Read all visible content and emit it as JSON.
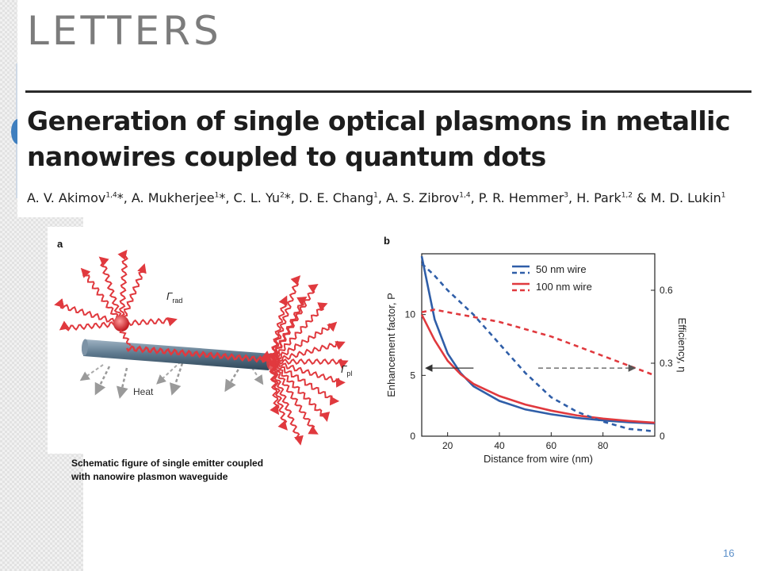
{
  "journal_name": "LETTERS",
  "title": {
    "line1": "Generation of single optical plasmons in metallic",
    "line2": "nanowires coupled to quantum dots"
  },
  "authors": [
    {
      "name": "A. V. Akimov",
      "sup": "1,4",
      "mark": "*"
    },
    {
      "name": "A. Mukherjee",
      "sup": "1",
      "mark": "*"
    },
    {
      "name": "C. L. Yu",
      "sup": "2",
      "mark": "*"
    },
    {
      "name": "D. E. Chang",
      "sup": "1",
      "mark": ""
    },
    {
      "name": "A. S. Zibrov",
      "sup": "1,4",
      "mark": ""
    },
    {
      "name": "P. R. Hemmer",
      "sup": "3",
      "mark": ""
    },
    {
      "name": "H. Park",
      "sup": "1,2",
      "mark": ""
    },
    {
      "name": "M. D. Lukin",
      "sup": "1",
      "mark": ""
    }
  ],
  "figure_a": {
    "panel_label": "a",
    "gamma_rad": "Γ",
    "gamma_rad_sub": "rad",
    "gamma_pl": "Γ",
    "gamma_pl_sub": "pl",
    "heat_label": "Heat"
  },
  "caption": {
    "line1": "Schematic figure of single emitter coupled",
    "line2": "with nanowire plasmon waveguide"
  },
  "page_number": "16",
  "colors": {
    "blue": "#2f5ea8",
    "red": "#e0393e",
    "accent": "#5b8fc9"
  },
  "chart_data": {
    "type": "line",
    "panel_label": "b",
    "xlabel": "Distance from wire (nm)",
    "ylabel_left": "Enhancement factor, P",
    "ylabel_right": "Efficiency, η",
    "xlim": [
      10,
      100
    ],
    "ylim_left": [
      0,
      15
    ],
    "ylim_right": [
      0,
      0.75
    ],
    "xticks": [
      20,
      40,
      60,
      80
    ],
    "yticks_left": [
      0,
      5,
      10
    ],
    "yticks_right": [
      0,
      0.3,
      0.6
    ],
    "legend": [
      {
        "label": "50 nm wire",
        "color": "#2f5ea8"
      },
      {
        "label": "100 nm wire",
        "color": "#e0393e"
      }
    ],
    "legend_position": "top-right",
    "grid": false,
    "series": [
      {
        "name": "50 nm wire",
        "axis": "left",
        "style": "solid",
        "color": "#2f5ea8",
        "x": [
          10,
          15,
          20,
          25,
          30,
          40,
          50,
          60,
          70,
          80,
          90,
          100
        ],
        "y": [
          14.8,
          9.6,
          6.8,
          5.2,
          4.1,
          2.9,
          2.2,
          1.8,
          1.5,
          1.3,
          1.15,
          1.05
        ]
      },
      {
        "name": "100 nm wire",
        "axis": "left",
        "style": "solid",
        "color": "#e0393e",
        "x": [
          10,
          15,
          20,
          25,
          30,
          40,
          50,
          60,
          70,
          80,
          90,
          100
        ],
        "y": [
          10.0,
          7.9,
          6.2,
          5.1,
          4.3,
          3.3,
          2.6,
          2.1,
          1.7,
          1.45,
          1.25,
          1.1
        ]
      },
      {
        "name": "50 nm wire",
        "axis": "right",
        "style": "dashed",
        "color": "#2f5ea8",
        "x": [
          10,
          15,
          20,
          25,
          30,
          40,
          50,
          60,
          70,
          80,
          90,
          100
        ],
        "y": [
          0.71,
          0.66,
          0.6,
          0.55,
          0.5,
          0.38,
          0.26,
          0.16,
          0.1,
          0.06,
          0.03,
          0.02
        ]
      },
      {
        "name": "100 nm wire",
        "axis": "right",
        "style": "dashed",
        "color": "#e0393e",
        "x": [
          10,
          15,
          20,
          25,
          30,
          40,
          50,
          60,
          70,
          80,
          90,
          100
        ],
        "y": [
          0.51,
          0.52,
          0.51,
          0.5,
          0.49,
          0.47,
          0.44,
          0.41,
          0.37,
          0.33,
          0.29,
          0.25
        ]
      }
    ],
    "annotations": [
      {
        "type": "arrow",
        "from_x": 30,
        "to_x": 12,
        "axis": "left",
        "y": 5.6,
        "color": "#333333"
      },
      {
        "type": "arrow",
        "from_x": 55,
        "to_x": 92,
        "axis": "left",
        "y": 5.6,
        "color": "#555555",
        "dashed": true
      }
    ]
  }
}
